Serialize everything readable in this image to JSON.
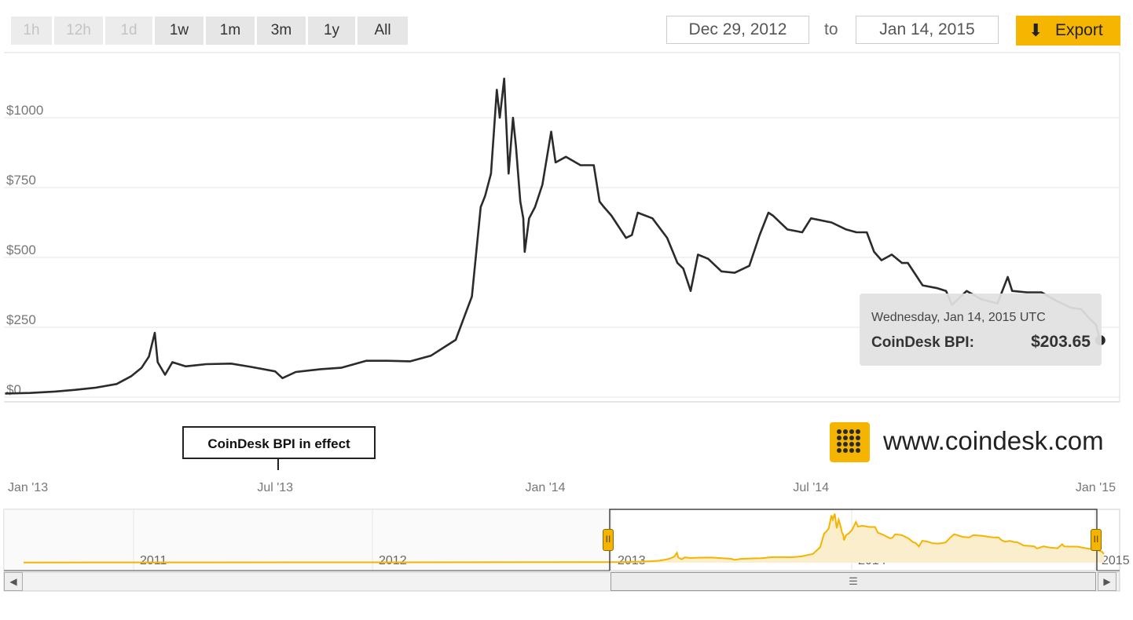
{
  "range_buttons": [
    {
      "label": "1h",
      "enabled": false
    },
    {
      "label": "12h",
      "enabled": false
    },
    {
      "label": "1d",
      "enabled": false
    },
    {
      "label": "1w",
      "enabled": true
    },
    {
      "label": "1m",
      "enabled": true
    },
    {
      "label": "3m",
      "enabled": true
    },
    {
      "label": "1y",
      "enabled": true
    },
    {
      "label": "All",
      "enabled": true
    }
  ],
  "date_from": "Dec 29, 2012",
  "to_label": "to",
  "date_to": "Jan 14, 2015",
  "export_label": "Export",
  "tooltip": {
    "date": "Wednesday, Jan 14, 2015 UTC",
    "series": "CoinDesk BPI:",
    "value": "$203.65"
  },
  "flag_label": "CoinDesk BPI in effect",
  "logo_text": "www.coindesk.com",
  "colors": {
    "line": "#2b2b2b",
    "accent": "#f5b400",
    "navigator_fill": "#fbeecd",
    "grid": "#e6e6e6"
  },
  "chart_data": {
    "type": "line",
    "title": "",
    "ylim": [
      0,
      1200
    ],
    "y_ticks": [
      {
        "v": 0,
        "label": "$0"
      },
      {
        "v": 250,
        "label": "$250"
      },
      {
        "v": 500,
        "label": "$500"
      },
      {
        "v": 750,
        "label": "$750"
      },
      {
        "v": 1000,
        "label": "$1000"
      }
    ],
    "x_ticks": [
      {
        "x": "2013-01-01",
        "label": "Jan '13"
      },
      {
        "x": "2013-07-01",
        "label": "Jul '13"
      },
      {
        "x": "2014-01-01",
        "label": "Jan '14"
      },
      {
        "x": "2014-07-01",
        "label": "Jul '14"
      },
      {
        "x": "2015-01-01",
        "label": "Jan '15"
      }
    ],
    "series": [
      {
        "name": "CoinDesk BPI",
        "points": [
          [
            "2012-12-29",
            13
          ],
          [
            "2013-01-15",
            15
          ],
          [
            "2013-02-01",
            20
          ],
          [
            "2013-02-15",
            26
          ],
          [
            "2013-03-01",
            34
          ],
          [
            "2013-03-15",
            47
          ],
          [
            "2013-03-25",
            75
          ],
          [
            "2013-04-01",
            105
          ],
          [
            "2013-04-06",
            145
          ],
          [
            "2013-04-10",
            230
          ],
          [
            "2013-04-12",
            125
          ],
          [
            "2013-04-17",
            80
          ],
          [
            "2013-04-22",
            125
          ],
          [
            "2013-05-01",
            110
          ],
          [
            "2013-05-15",
            118
          ],
          [
            "2013-06-01",
            120
          ],
          [
            "2013-06-15",
            108
          ],
          [
            "2013-07-01",
            92
          ],
          [
            "2013-07-06",
            68
          ],
          [
            "2013-07-15",
            90
          ],
          [
            "2013-08-01",
            100
          ],
          [
            "2013-08-15",
            105
          ],
          [
            "2013-09-01",
            130
          ],
          [
            "2013-09-15",
            130
          ],
          [
            "2013-10-01",
            128
          ],
          [
            "2013-10-15",
            148
          ],
          [
            "2013-11-01",
            205
          ],
          [
            "2013-11-07",
            290
          ],
          [
            "2013-11-12",
            360
          ],
          [
            "2013-11-18",
            680
          ],
          [
            "2013-11-21",
            720
          ],
          [
            "2013-11-25",
            800
          ],
          [
            "2013-11-29",
            1100
          ],
          [
            "2013-12-01",
            1000
          ],
          [
            "2013-12-04",
            1140
          ],
          [
            "2013-12-07",
            800
          ],
          [
            "2013-12-10",
            1000
          ],
          [
            "2013-12-12",
            900
          ],
          [
            "2013-12-15",
            700
          ],
          [
            "2013-12-17",
            640
          ],
          [
            "2013-12-18",
            520
          ],
          [
            "2013-12-21",
            640
          ],
          [
            "2013-12-25",
            680
          ],
          [
            "2013-12-30",
            760
          ],
          [
            "2014-01-05",
            950
          ],
          [
            "2014-01-08",
            840
          ],
          [
            "2014-01-15",
            860
          ],
          [
            "2014-01-25",
            830
          ],
          [
            "2014-02-03",
            830
          ],
          [
            "2014-02-07",
            700
          ],
          [
            "2014-02-10",
            680
          ],
          [
            "2014-02-15",
            650
          ],
          [
            "2014-02-25",
            570
          ],
          [
            "2014-03-01",
            580
          ],
          [
            "2014-03-05",
            660
          ],
          [
            "2014-03-15",
            640
          ],
          [
            "2014-03-25",
            570
          ],
          [
            "2014-04-01",
            480
          ],
          [
            "2014-04-05",
            460
          ],
          [
            "2014-04-10",
            380
          ],
          [
            "2014-04-15",
            510
          ],
          [
            "2014-04-22",
            495
          ],
          [
            "2014-05-01",
            450
          ],
          [
            "2014-05-10",
            445
          ],
          [
            "2014-05-20",
            470
          ],
          [
            "2014-05-27",
            580
          ],
          [
            "2014-06-02",
            660
          ],
          [
            "2014-06-05",
            650
          ],
          [
            "2014-06-15",
            600
          ],
          [
            "2014-06-25",
            590
          ],
          [
            "2014-07-01",
            640
          ],
          [
            "2014-07-15",
            625
          ],
          [
            "2014-07-25",
            600
          ],
          [
            "2014-08-01",
            590
          ],
          [
            "2014-08-08",
            590
          ],
          [
            "2014-08-13",
            520
          ],
          [
            "2014-08-18",
            490
          ],
          [
            "2014-08-25",
            510
          ],
          [
            "2014-09-01",
            480
          ],
          [
            "2014-09-05",
            480
          ],
          [
            "2014-09-10",
            440
          ],
          [
            "2014-09-15",
            400
          ],
          [
            "2014-09-25",
            390
          ],
          [
            "2014-10-01",
            380
          ],
          [
            "2014-10-05",
            330
          ],
          [
            "2014-10-15",
            380
          ],
          [
            "2014-10-25",
            350
          ],
          [
            "2014-11-05",
            335
          ],
          [
            "2014-11-12",
            430
          ],
          [
            "2014-11-15",
            380
          ],
          [
            "2014-11-25",
            375
          ],
          [
            "2014-12-05",
            375
          ],
          [
            "2014-12-15",
            345
          ],
          [
            "2014-12-25",
            320
          ],
          [
            "2015-01-01",
            315
          ],
          [
            "2015-01-06",
            285
          ],
          [
            "2015-01-11",
            260
          ],
          [
            "2015-01-14",
            203.65
          ]
        ]
      }
    ],
    "navigator": {
      "labels": [
        "2011",
        "2012",
        "2013",
        "2014",
        "2015"
      ],
      "selected_range": [
        "2012-12-29",
        "2015-01-14"
      ]
    }
  }
}
